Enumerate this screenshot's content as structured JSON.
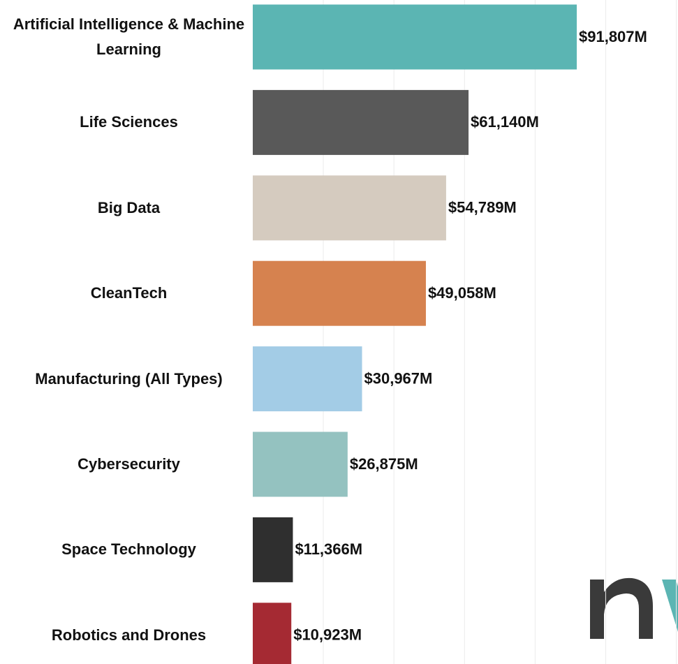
{
  "chart_data": {
    "type": "bar",
    "orientation": "horizontal",
    "categories": [
      "Artificial Intelligence & Machine Learning",
      "Life Sciences",
      "Big Data",
      "CleanTech",
      "Manufacturing (All Types)",
      "Cybersecurity",
      "Space Technology",
      "Robotics and Drones"
    ],
    "values": [
      91807,
      61140,
      54789,
      49058,
      30967,
      26875,
      11366,
      10923
    ],
    "value_labels": [
      "$91,807M",
      "$61,140M",
      "$54,789M",
      "$49,058M",
      "$30,967M",
      "$26,875M",
      "$11,366M",
      "$10,923M"
    ],
    "colors": [
      "#5bb5b3",
      "#595959",
      "#d5cbbf",
      "#d6824f",
      "#a3cce6",
      "#94c2c0",
      "#2f2f2f",
      "#a52a33"
    ],
    "xlim": [
      0,
      120000
    ],
    "xticks": [
      0,
      20000,
      40000,
      60000,
      80000,
      100000,
      120000
    ],
    "grid": true
  }
}
